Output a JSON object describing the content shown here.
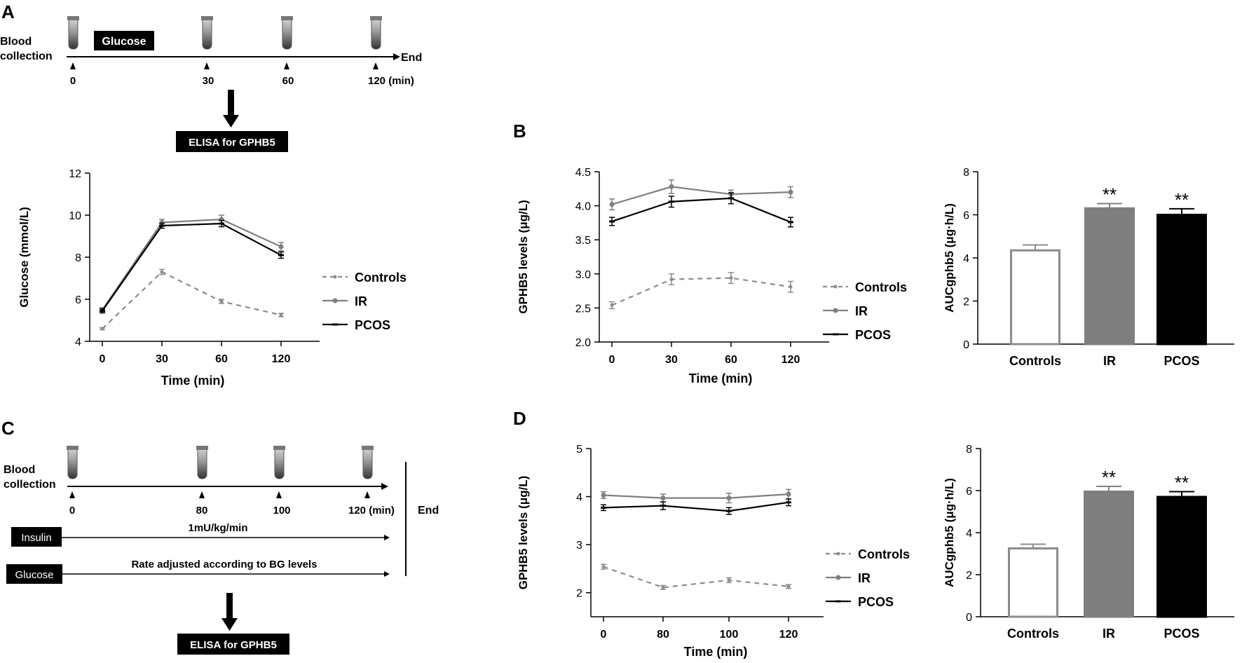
{
  "panels": {
    "a": "A",
    "b": "B",
    "c": "C",
    "d": "D"
  },
  "schemeA": {
    "blood_collection": [
      "Blood",
      "collection"
    ],
    "glucose_box": "Glucose",
    "end": "End",
    "ticks": [
      "0",
      "30",
      "60",
      "120 (min)"
    ],
    "elisa": "ELISA for GPHB5"
  },
  "schemeC": {
    "blood_collection": [
      "Blood",
      "collection"
    ],
    "ticks": [
      "0",
      "80",
      "100",
      "120 (min)"
    ],
    "end": "End",
    "insulin_box": "Insulin",
    "insulin_rate": "1mU/kg/min",
    "glucose_box": "Glucose",
    "glucose_rate": "Rate adjusted according to BG levels",
    "elisa": "ELISA for GPHB5"
  },
  "colors": {
    "controls": "#8c8c8c",
    "ir": "#7f7f7f",
    "pcos": "#000000"
  },
  "chart_data": [
    {
      "id": "A-glucose",
      "type": "line",
      "xlabel": "Time (min)",
      "ylabel": "Glucose (mmol/L)",
      "categories": [
        "0",
        "30",
        "60",
        "120"
      ],
      "ylim": [
        4,
        12
      ],
      "yticks": [
        "4",
        "6",
        "8",
        "10",
        "12"
      ],
      "legend": [
        "Controls",
        "IR",
        "PCOS"
      ],
      "series": [
        {
          "name": "Controls",
          "values": [
            4.6,
            7.3,
            5.9,
            5.25
          ],
          "err": [
            0.05,
            0.12,
            0.1,
            0.08
          ]
        },
        {
          "name": "IR",
          "values": [
            5.5,
            9.65,
            9.8,
            8.5
          ],
          "err": [
            0.1,
            0.15,
            0.2,
            0.2
          ]
        },
        {
          "name": "PCOS",
          "values": [
            5.45,
            9.5,
            9.6,
            8.1
          ],
          "err": [
            0.1,
            0.12,
            0.15,
            0.15
          ]
        }
      ]
    },
    {
      "id": "B-line",
      "type": "line",
      "xlabel": "Time (min)",
      "ylabel": "GPHB5 levels (μg/L)",
      "categories": [
        "0",
        "30",
        "60",
        "120"
      ],
      "ylim": [
        2.0,
        4.5
      ],
      "yticks": [
        "2.0",
        "2.5",
        "3.0",
        "3.5",
        "4.0",
        "4.5"
      ],
      "legend": [
        "Controls",
        "IR",
        "PCOS"
      ],
      "series": [
        {
          "name": "Controls",
          "values": [
            2.54,
            2.92,
            2.94,
            2.81
          ],
          "err": [
            0.05,
            0.08,
            0.08,
            0.08
          ]
        },
        {
          "name": "IR",
          "values": [
            4.02,
            4.28,
            4.17,
            4.2
          ],
          "err": [
            0.08,
            0.1,
            0.06,
            0.08
          ]
        },
        {
          "name": "PCOS",
          "values": [
            3.77,
            4.06,
            4.11,
            3.76
          ],
          "err": [
            0.06,
            0.08,
            0.08,
            0.07
          ]
        }
      ]
    },
    {
      "id": "B-bar",
      "type": "bar",
      "ylabel": "AUCgphb5 (μg·h/L)",
      "categories": [
        "Controls",
        "IR",
        "PCOS"
      ],
      "values": [
        4.35,
        6.3,
        6.0
      ],
      "err": [
        0.25,
        0.22,
        0.28
      ],
      "annotations": [
        "",
        "**",
        "**"
      ],
      "ylim": [
        0,
        8
      ],
      "yticks": [
        "0",
        "2",
        "4",
        "6",
        "8"
      ]
    },
    {
      "id": "D-line",
      "type": "line",
      "xlabel": "Time (min)",
      "ylabel": "GPHB5 levels (μg/L)",
      "categories": [
        "0",
        "80",
        "100",
        "120"
      ],
      "ylim": [
        1.5,
        5
      ],
      "yticks": [
        "2",
        "3",
        "4",
        "5"
      ],
      "legend": [
        "Controls",
        "IR",
        "PCOS"
      ],
      "series": [
        {
          "name": "Controls",
          "values": [
            2.54,
            2.11,
            2.26,
            2.13
          ],
          "err": [
            0.05,
            0.04,
            0.05,
            0.04
          ]
        },
        {
          "name": "IR",
          "values": [
            4.03,
            3.97,
            3.97,
            4.05
          ],
          "err": [
            0.07,
            0.08,
            0.1,
            0.1
          ]
        },
        {
          "name": "PCOS",
          "values": [
            3.77,
            3.81,
            3.7,
            3.88
          ],
          "err": [
            0.06,
            0.08,
            0.07,
            0.07
          ]
        }
      ]
    },
    {
      "id": "D-bar",
      "type": "bar",
      "ylabel": "AUCgphb5 (μg·h/L)",
      "categories": [
        "Controls",
        "IR",
        "PCOS"
      ],
      "values": [
        3.25,
        5.95,
        5.7
      ],
      "err": [
        0.2,
        0.25,
        0.25
      ],
      "annotations": [
        "",
        "**",
        "**"
      ],
      "ylim": [
        0,
        8
      ],
      "yticks": [
        "0",
        "2",
        "4",
        "6",
        "8"
      ]
    }
  ]
}
